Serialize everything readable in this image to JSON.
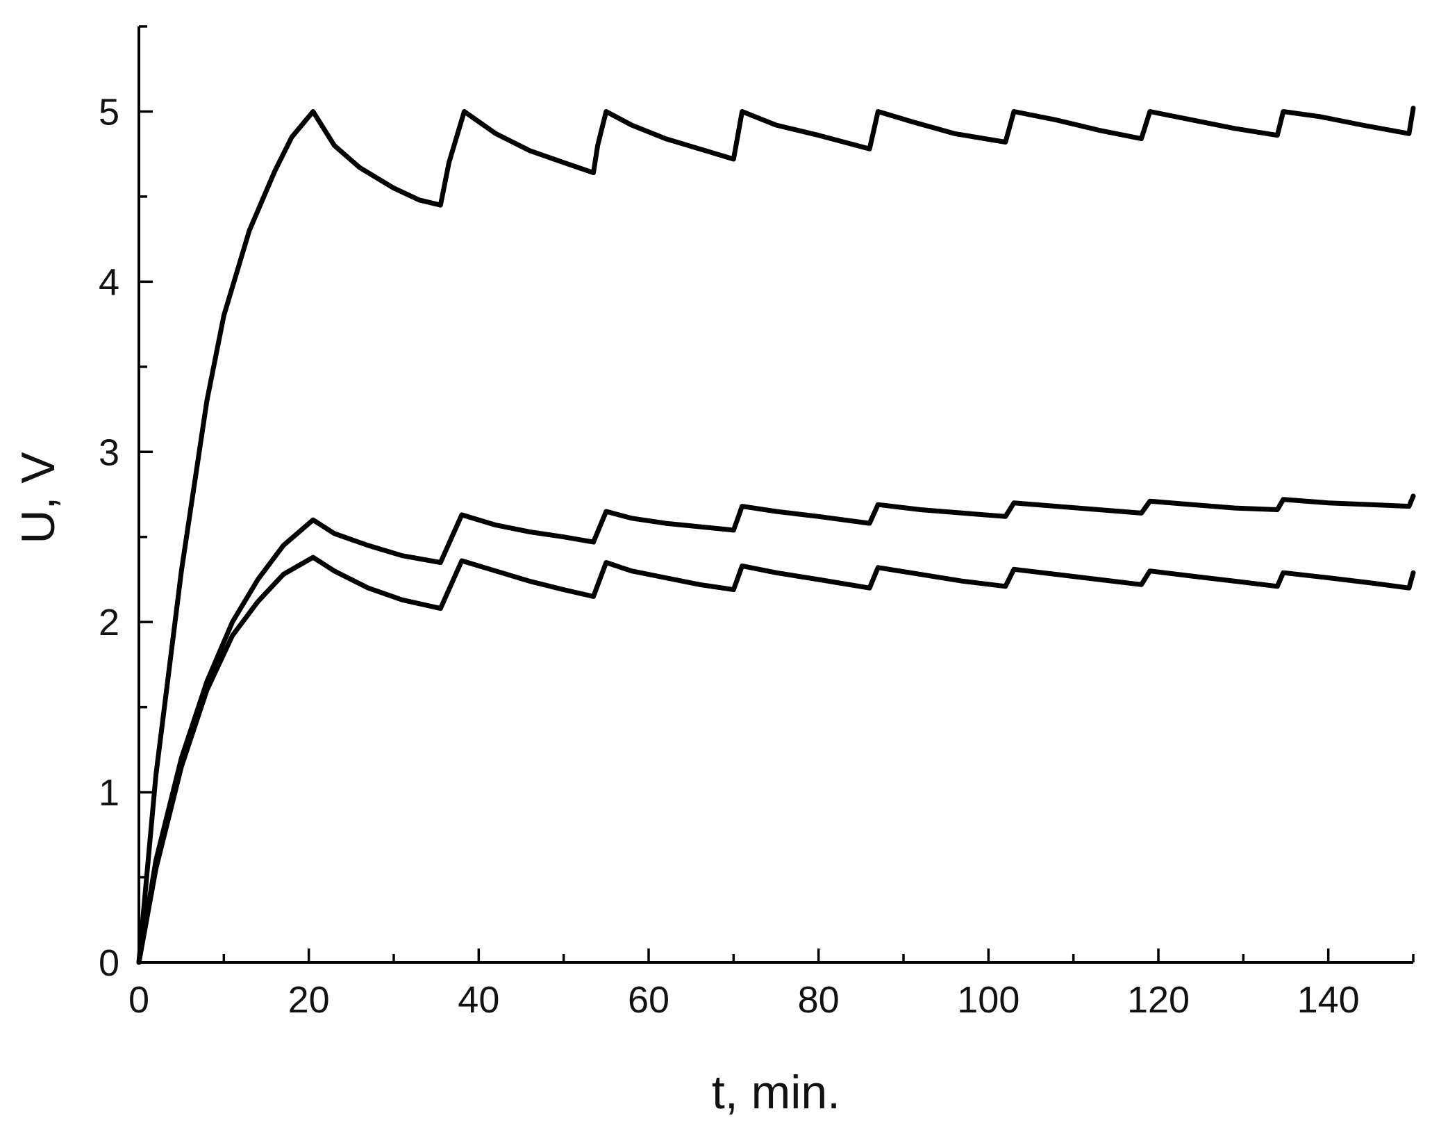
{
  "chart_data": {
    "type": "line",
    "title": "",
    "xlabel": "t, min.",
    "ylabel": "U, V",
    "xlim": [
      0,
      150
    ],
    "ylim": [
      0,
      5.5
    ],
    "x_ticks": [
      0,
      20,
      40,
      60,
      80,
      100,
      120,
      140
    ],
    "y_ticks": [
      0,
      1,
      2,
      3,
      4,
      5
    ],
    "x_minor_step": 10,
    "y_minor_step": 0.5,
    "grid": false,
    "legend": "none",
    "line_color": "#000000",
    "series": [
      {
        "x": [
          0,
          2,
          5,
          8,
          10,
          13,
          16,
          18,
          20.5,
          23,
          26,
          30,
          33,
          35.5,
          36.5,
          38.3,
          42,
          46,
          50,
          53.5,
          54,
          55,
          58,
          62,
          66,
          70,
          71,
          75,
          80,
          86,
          87,
          91,
          96,
          102,
          103,
          108,
          113,
          118,
          119,
          124,
          129,
          134,
          134.7,
          139,
          144,
          149.5,
          150
        ],
        "y": [
          0,
          1.1,
          2.3,
          3.3,
          3.8,
          4.3,
          4.65,
          4.85,
          5.0,
          4.8,
          4.67,
          4.55,
          4.48,
          4.45,
          4.7,
          5.0,
          4.87,
          4.77,
          4.7,
          4.64,
          4.8,
          5.0,
          4.92,
          4.84,
          4.78,
          4.72,
          5.0,
          4.92,
          4.86,
          4.78,
          5.0,
          4.94,
          4.87,
          4.82,
          5.0,
          4.95,
          4.89,
          4.84,
          5.0,
          4.95,
          4.9,
          4.86,
          5.0,
          4.97,
          4.92,
          4.87,
          5.02
        ]
      },
      {
        "x": [
          0,
          2,
          5,
          8,
          11,
          14,
          17,
          20.5,
          23,
          27,
          31,
          35.5,
          38,
          42,
          46,
          50,
          53.5,
          55,
          58,
          62,
          66,
          70,
          71,
          75,
          80,
          86,
          87,
          92,
          97,
          102,
          103,
          108,
          113,
          118,
          119,
          124,
          129,
          134,
          134.7,
          140,
          145,
          149.5,
          150
        ],
        "y": [
          0,
          0.6,
          1.2,
          1.65,
          2.0,
          2.25,
          2.45,
          2.6,
          2.52,
          2.45,
          2.39,
          2.35,
          2.63,
          2.57,
          2.53,
          2.5,
          2.47,
          2.65,
          2.61,
          2.58,
          2.56,
          2.54,
          2.68,
          2.65,
          2.62,
          2.58,
          2.69,
          2.66,
          2.64,
          2.62,
          2.7,
          2.68,
          2.66,
          2.64,
          2.71,
          2.69,
          2.67,
          2.66,
          2.72,
          2.7,
          2.69,
          2.68,
          2.74
        ]
      },
      {
        "x": [
          0,
          2,
          5,
          8,
          11,
          14,
          17,
          20.5,
          23,
          27,
          31,
          35.5,
          38,
          42,
          46,
          50,
          53.5,
          55,
          58,
          62,
          66,
          70,
          71,
          75,
          80,
          86,
          87,
          92,
          97,
          102,
          103,
          108,
          113,
          118,
          119,
          124,
          129,
          134,
          134.7,
          140,
          145,
          149.5,
          150
        ],
        "y": [
          0,
          0.55,
          1.15,
          1.6,
          1.92,
          2.12,
          2.28,
          2.38,
          2.3,
          2.2,
          2.13,
          2.08,
          2.36,
          2.3,
          2.24,
          2.19,
          2.15,
          2.35,
          2.3,
          2.26,
          2.22,
          2.19,
          2.33,
          2.29,
          2.25,
          2.2,
          2.32,
          2.28,
          2.24,
          2.21,
          2.31,
          2.28,
          2.25,
          2.22,
          2.3,
          2.27,
          2.24,
          2.21,
          2.29,
          2.26,
          2.23,
          2.2,
          2.29
        ]
      }
    ]
  }
}
